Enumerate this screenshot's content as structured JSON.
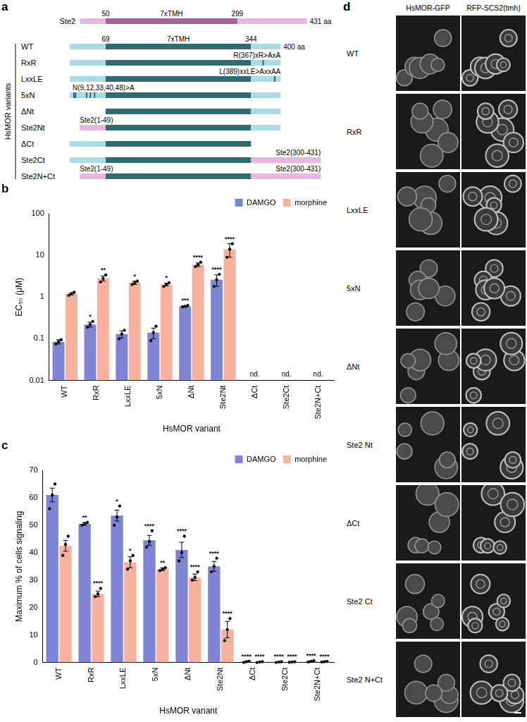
{
  "diagram": {
    "panel": "a",
    "group_label": "HsMOR variants",
    "reference": {
      "name": "Ste2",
      "length": 431,
      "length_label": "431 aa",
      "tm": [
        50,
        299
      ],
      "tm_label": "7xTMH",
      "color": "#e9b6e4",
      "tm_color": "#a8619f"
    },
    "hsmor": {
      "length": 400,
      "length_label": "400 aa",
      "tm": [
        69,
        344
      ],
      "tm_label": "7xTMH",
      "color": "#a9dce6",
      "tm_color": "#2f6b73"
    },
    "rows": [
      {
        "name": "WT",
        "n_term": "HsMOR",
        "c_term": "HsMOR"
      },
      {
        "name": "RxR",
        "n_term": "HsMOR",
        "c_term": "HsMOR",
        "mutation": "R(367)xR>AxA",
        "sites": [
          367
        ]
      },
      {
        "name": "LxxLE",
        "n_term": "HsMOR",
        "c_term": "HsMOR",
        "mutation": "L(389)xxLE>AxxAA",
        "sites": [
          389
        ]
      },
      {
        "name": "5xN",
        "n_term": "HsMOR",
        "c_term": "HsMOR",
        "mutation": "N(9,12,33,40,48)>A",
        "sites": [
          9,
          12,
          33,
          40,
          48
        ]
      },
      {
        "name": "ΔNt",
        "n_term": null,
        "c_term": "HsMOR"
      },
      {
        "name": "Ste2Nt",
        "n_term": "Ste2",
        "c_term": "HsMOR",
        "n_label": "Ste2(1-49)"
      },
      {
        "name": "ΔCt",
        "n_term": "HsMOR",
        "c_term": null
      },
      {
        "name": "Ste2Ct",
        "n_term": "HsMOR",
        "c_term": "Ste2",
        "c_label": "Ste2(300-431)"
      },
      {
        "name": "Ste2N+Ct",
        "n_term": "Ste2",
        "c_term": "Ste2",
        "n_label": "Ste2(1-49)",
        "c_label": "Ste2(300-431)"
      }
    ]
  },
  "chart_data": [
    {
      "panel": "b",
      "type": "bar",
      "x_label": "HsMOR variant",
      "y_label": "EC₅₀ (μM)",
      "categories": [
        "WT",
        "RxR",
        "LxxLE",
        "5xN",
        "ΔNt",
        "Ste2Nt",
        "ΔCt",
        "Ste2Ct",
        "Ste2N+Ct"
      ],
      "log": "y",
      "ylim": [
        0.01,
        100
      ],
      "yticks": [
        0.01,
        0.1,
        1,
        10,
        100
      ],
      "grid": false,
      "legend": "upper right",
      "series": [
        {
          "name": "DAMGO",
          "color": "#7f84d4",
          "values": [
            0.085,
            0.22,
            0.13,
            0.14,
            0.6,
            2.6,
            null,
            null,
            null
          ],
          "errors": [
            0.01,
            0.03,
            0.025,
            0.04,
            0.02,
            0.8,
            null,
            null,
            null
          ],
          "points": [
            [
              0.075,
              0.085,
              0.095
            ],
            [
              0.19,
              0.22,
              0.26
            ],
            [
              0.1,
              0.13,
              0.16
            ],
            [
              0.09,
              0.14,
              0.2
            ],
            [
              0.58,
              0.6,
              0.63
            ],
            [
              1.8,
              2.6,
              3.5
            ],
            null,
            null,
            null
          ],
          "significance": [
            null,
            "*",
            null,
            null,
            "***",
            "****",
            null,
            null,
            null
          ]
        },
        {
          "name": "morphine",
          "color": "#f6b29c",
          "values": [
            1.2,
            2.8,
            2.2,
            2.0,
            6.0,
            14,
            null,
            null,
            null
          ],
          "errors": [
            0.07,
            0.4,
            0.2,
            0.15,
            0.6,
            5,
            null,
            null,
            null
          ],
          "points": [
            [
              1.1,
              1.2,
              1.3
            ],
            [
              2.3,
              2.8,
              3.4
            ],
            [
              2.0,
              2.2,
              2.4
            ],
            [
              1.8,
              2.0,
              2.2
            ],
            [
              5.4,
              6.0,
              6.8
            ],
            [
              9,
              14,
              19
            ],
            null,
            null,
            null
          ],
          "significance": [
            null,
            "**",
            "*",
            "*",
            "****",
            "****",
            null,
            null,
            null
          ]
        }
      ],
      "annotations": [
        {
          "category": "ΔCt",
          "text": "nd."
        },
        {
          "category": "Ste2Ct",
          "text": "nd."
        },
        {
          "category": "Ste2N+Ct",
          "text": "nd."
        }
      ]
    },
    {
      "panel": "c",
      "type": "bar",
      "x_label": "HsMOR variant",
      "y_label": "Maximum % of cells signaling",
      "categories": [
        "WT",
        "RxR",
        "LxxLE",
        "5xN",
        "ΔNt",
        "Ste2Nt",
        "ΔCt",
        "Ste2Ct",
        "Ste2N+Ct"
      ],
      "ylim": [
        0,
        70
      ],
      "yticks": [
        0,
        10,
        20,
        30,
        40,
        50,
        60,
        70
      ],
      "grid": false,
      "legend": "upper right",
      "series": [
        {
          "name": "DAMGO",
          "color": "#7f84d4",
          "values": [
            61,
            50.5,
            53.5,
            44.5,
            41,
            35,
            0.3,
            0.2,
            0.4
          ],
          "errors": [
            2.5,
            0.5,
            2,
            1.8,
            2.8,
            1.8,
            0.1,
            0.1,
            0.2
          ],
          "points": [
            [
              56,
              61,
              65
            ],
            [
              50,
              50.5,
              51
            ],
            [
              50,
              53,
              57
            ],
            [
              42,
              44,
              48
            ],
            [
              37,
              40,
              46
            ],
            [
              33,
              35,
              38
            ],
            [
              0,
              0.3,
              0.5
            ],
            [
              0,
              0.2,
              0.3
            ],
            [
              0.2,
              0.4,
              0.7
            ]
          ],
          "significance": [
            null,
            "**",
            "*",
            "****",
            "****",
            "****",
            "****",
            "****",
            "****"
          ]
        },
        {
          "name": "morphine",
          "color": "#f6b29c",
          "values": [
            42.5,
            25,
            36.5,
            34,
            31,
            12,
            0.2,
            0.2,
            0.3
          ],
          "errors": [
            2,
            1,
            2,
            0.5,
            1.2,
            3,
            0.1,
            0.1,
            0.1
          ],
          "points": [
            [
              39,
              43,
              46
            ],
            [
              24,
              25,
              27
            ],
            [
              34,
              37,
              39
            ],
            [
              33.5,
              34,
              34.5
            ],
            [
              30,
              31,
              33
            ],
            [
              8,
              12,
              16
            ],
            [
              0,
              0.2,
              0.3
            ],
            [
              0.1,
              0.2,
              0.3
            ],
            [
              0.2,
              0.3,
              0.4
            ]
          ],
          "significance": [
            null,
            "****",
            "*",
            "**",
            "****",
            "****",
            "****",
            "****",
            "****"
          ]
        }
      ]
    }
  ],
  "images": {
    "panel": "d",
    "columns": [
      "HsMOR-GFP",
      "RFP-SCS2(tmh)"
    ],
    "rows": [
      "WT",
      "RxR",
      "LxxLE",
      "5xN",
      "ΔNt",
      "Ste2 Nt",
      "ΔCt",
      "Ste2 Ct",
      "Ste2 N+Ct"
    ]
  }
}
